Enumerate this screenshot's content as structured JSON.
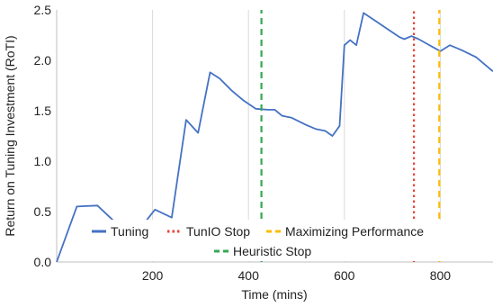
{
  "chart_data": {
    "type": "line",
    "title": "",
    "xlabel": "Time (mins)",
    "ylabel": "Return on Tuning Investment (RoTI)",
    "xlim": [
      0,
      910
    ],
    "ylim": [
      0,
      2.5
    ],
    "x_ticks": [
      200,
      400,
      600,
      800
    ],
    "x_tick_labels": [
      "200",
      "400",
      "600",
      "800"
    ],
    "y_ticks": [
      0,
      0.5,
      1.0,
      1.5,
      2.0,
      2.5
    ],
    "y_tick_labels": [
      "0.0",
      "0.5",
      "1.0",
      "1.5",
      "2.0",
      "2.5"
    ],
    "grid": "vertical",
    "legend_position": "lower-center",
    "series": [
      {
        "name": "Tuning",
        "color": "#4472c4",
        "style": "solid",
        "x": [
          0,
          42,
          85,
          125,
          170,
          205,
          240,
          270,
          295,
          320,
          340,
          365,
          390,
          415,
          440,
          455,
          470,
          490,
          520,
          540,
          560,
          575,
          590,
          600,
          612,
          625,
          640,
          665,
          690,
          715,
          725,
          740,
          755,
          770,
          785,
          800,
          820,
          845,
          875,
          910
        ],
        "y": [
          0.0,
          0.55,
          0.56,
          0.38,
          0.31,
          0.52,
          0.44,
          1.41,
          1.28,
          1.88,
          1.82,
          1.7,
          1.6,
          1.52,
          1.51,
          1.51,
          1.45,
          1.43,
          1.36,
          1.32,
          1.3,
          1.25,
          1.35,
          2.15,
          2.2,
          2.15,
          2.47,
          2.39,
          2.31,
          2.23,
          2.21,
          2.24,
          2.21,
          2.17,
          2.13,
          2.09,
          2.15,
          2.1,
          2.03,
          1.89
        ]
      },
      {
        "name": "TunIO Stop",
        "color": "#ea4335",
        "style": "dotted",
        "x": [
          745,
          745
        ],
        "y": [
          0,
          2.5
        ]
      },
      {
        "name": "Maximizing Performance",
        "color": "#fbbc04",
        "style": "dashed",
        "x": [
          798,
          798
        ],
        "y": [
          0,
          2.5
        ]
      },
      {
        "name": "Heuristic Stop",
        "color": "#34a853",
        "style": "dashed",
        "x": [
          427,
          427
        ],
        "y": [
          0,
          2.5
        ]
      }
    ]
  }
}
